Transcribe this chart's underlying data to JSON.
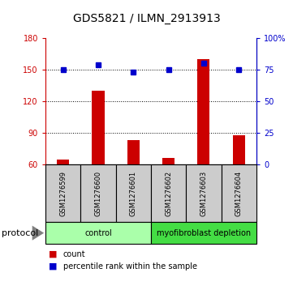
{
  "title": "GDS5821 / ILMN_2913913",
  "samples": [
    "GSM1276599",
    "GSM1276600",
    "GSM1276601",
    "GSM1276602",
    "GSM1276603",
    "GSM1276604"
  ],
  "counts": [
    65,
    130,
    83,
    66,
    160,
    88
  ],
  "percentile_ranks": [
    75,
    79,
    73,
    75,
    80,
    75
  ],
  "ylim_left": [
    60,
    180
  ],
  "yticks_left": [
    60,
    90,
    120,
    150,
    180
  ],
  "ylim_right": [
    0,
    100
  ],
  "yticks_right": [
    0,
    25,
    50,
    75,
    100
  ],
  "bar_color": "#cc0000",
  "dot_color": "#0000cc",
  "groups": [
    {
      "label": "control",
      "indices": [
        0,
        1,
        2
      ],
      "color": "#aaffaa"
    },
    {
      "label": "myofibroblast depletion",
      "indices": [
        3,
        4,
        5
      ],
      "color": "#44dd44"
    }
  ],
  "protocol_label": "protocol",
  "legend_count_label": "count",
  "legend_pct_label": "percentile rank within the sample",
  "sample_box_color": "#cccccc",
  "left_tick_color": "#cc0000",
  "right_tick_color": "#0000cc",
  "title_fontsize": 10,
  "tick_fontsize": 7,
  "sample_fontsize": 6,
  "group_fontsize": 7,
  "legend_fontsize": 7,
  "protocol_fontsize": 8
}
